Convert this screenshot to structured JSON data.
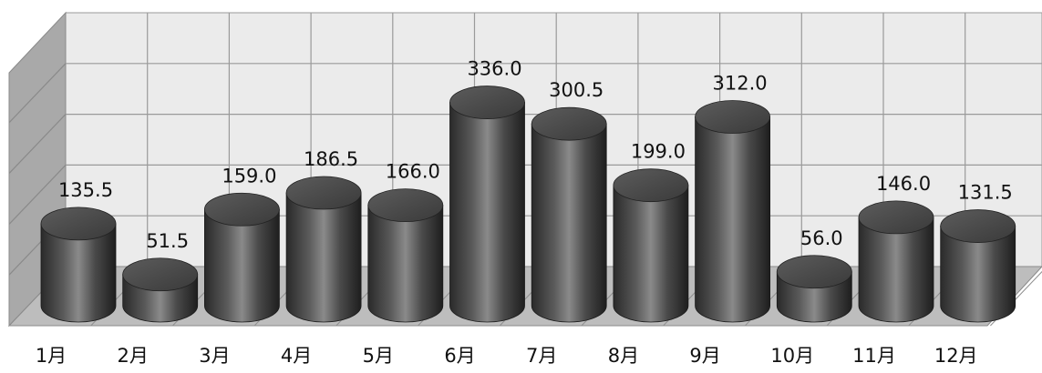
{
  "chart_data": {
    "type": "bar",
    "style": "3d-cylinder",
    "categories": [
      "1月",
      "2月",
      "3月",
      "4月",
      "5月",
      "6月",
      "7月",
      "8月",
      "9月",
      "10月",
      "11月",
      "12月"
    ],
    "series": [
      {
        "values": [
          135.5,
          51.5,
          159.0,
          186.5,
          166.0,
          336.0,
          300.5,
          199.0,
          312.0,
          56.0,
          146.0,
          131.5
        ],
        "labels": [
          "135.5",
          "51.5",
          "159.0",
          "186.5",
          "166.0",
          "336.0",
          "300.5",
          "199.0",
          "312.0",
          "56.0",
          "146.0",
          "131.5"
        ]
      }
    ],
    "ylim": [
      0,
      400
    ],
    "grid": true,
    "legend": "none",
    "colors": {
      "bar_dark": "#2e2e2e",
      "bar_light": "#8a8a8a",
      "wall": "#e9e9e9",
      "side_wall": "#a8a8a8",
      "floor": "#b8b8b8",
      "grid": "#9a9a9a"
    }
  }
}
